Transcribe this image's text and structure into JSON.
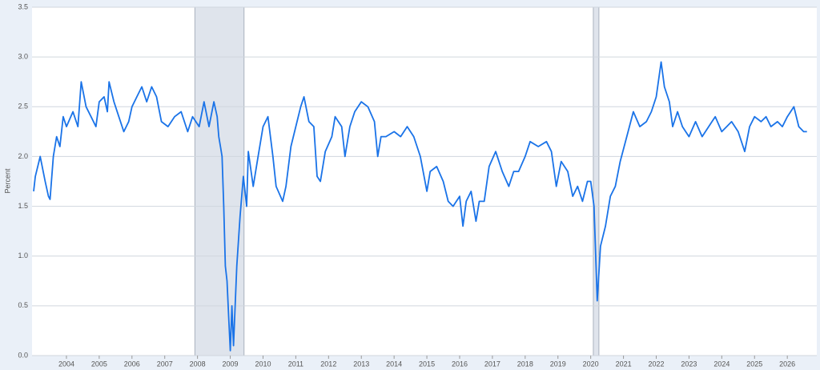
{
  "chart_data": {
    "type": "line",
    "y_label": "Percent",
    "x": [
      2003.0,
      2003.05,
      2003.2,
      2003.35,
      2003.45,
      2003.5,
      2003.6,
      2003.7,
      2003.8,
      2003.9,
      2004.0,
      2004.2,
      2004.35,
      2004.45,
      2004.6,
      2004.75,
      2004.9,
      2005.0,
      2005.15,
      2005.25,
      2005.3,
      2005.45,
      2005.6,
      2005.75,
      2005.9,
      2006.0,
      2006.15,
      2006.3,
      2006.45,
      2006.6,
      2006.75,
      2006.9,
      2007.1,
      2007.3,
      2007.5,
      2007.7,
      2007.85,
      2008.05,
      2008.2,
      2008.35,
      2008.5,
      2008.6,
      2008.65,
      2008.7,
      2008.75,
      2008.8,
      2008.85,
      2008.9,
      2008.95,
      2009.0,
      2009.05,
      2009.1,
      2009.2,
      2009.3,
      2009.4,
      2009.5,
      2009.55,
      2009.7,
      2009.85,
      2010.0,
      2010.15,
      2010.3,
      2010.4,
      2010.6,
      2010.7,
      2010.85,
      2011.0,
      2011.15,
      2011.25,
      2011.4,
      2011.55,
      2011.65,
      2011.75,
      2011.9,
      2012.1,
      2012.2,
      2012.4,
      2012.5,
      2012.65,
      2012.8,
      2013.0,
      2013.2,
      2013.4,
      2013.5,
      2013.6,
      2013.75,
      2014.0,
      2014.2,
      2014.4,
      2014.6,
      2014.8,
      2015.0,
      2015.1,
      2015.3,
      2015.5,
      2015.65,
      2015.8,
      2016.0,
      2016.1,
      2016.2,
      2016.35,
      2016.5,
      2016.6,
      2016.75,
      2016.9,
      2017.1,
      2017.3,
      2017.5,
      2017.65,
      2017.8,
      2018.0,
      2018.15,
      2018.4,
      2018.65,
      2018.8,
      2018.95,
      2019.1,
      2019.3,
      2019.45,
      2019.6,
      2019.75,
      2019.9,
      2020.0,
      2020.1,
      2020.2,
      2020.3,
      2020.45,
      2020.6,
      2020.75,
      2020.9,
      2021.1,
      2021.3,
      2021.5,
      2021.7,
      2021.85,
      2022.0,
      2022.15,
      2022.25,
      2022.4,
      2022.5,
      2022.65,
      2022.8,
      2023.0,
      2023.2,
      2023.4,
      2023.6,
      2023.8,
      2024.0,
      2024.15,
      2024.3,
      2024.5,
      2024.7,
      2024.85,
      2025.0,
      2025.2,
      2025.35,
      2025.5,
      2025.7,
      2025.85,
      2026.0,
      2026.2,
      2026.35,
      2026.5,
      2026.6
    ],
    "series": [
      {
        "color": "#1a73e8",
        "values": [
          1.65,
          1.8,
          2.0,
          1.75,
          1.6,
          1.57,
          2.0,
          2.2,
          2.1,
          2.4,
          2.3,
          2.45,
          2.3,
          2.75,
          2.5,
          2.4,
          2.3,
          2.55,
          2.6,
          2.45,
          2.75,
          2.55,
          2.4,
          2.25,
          2.35,
          2.5,
          2.6,
          2.7,
          2.55,
          2.7,
          2.6,
          2.35,
          2.3,
          2.4,
          2.45,
          2.25,
          2.4,
          2.3,
          2.55,
          2.3,
          2.55,
          2.4,
          2.2,
          2.1,
          2.0,
          1.5,
          0.9,
          0.75,
          0.4,
          0.05,
          0.5,
          0.1,
          0.9,
          1.4,
          1.8,
          1.5,
          2.05,
          1.7,
          2.0,
          2.3,
          2.4,
          2.0,
          1.7,
          1.55,
          1.7,
          2.1,
          2.3,
          2.5,
          2.6,
          2.35,
          2.3,
          1.8,
          1.75,
          2.05,
          2.2,
          2.4,
          2.3,
          2.0,
          2.3,
          2.45,
          2.55,
          2.5,
          2.35,
          2.0,
          2.2,
          2.2,
          2.25,
          2.2,
          2.3,
          2.2,
          2.0,
          1.65,
          1.85,
          1.9,
          1.75,
          1.55,
          1.5,
          1.6,
          1.3,
          1.55,
          1.65,
          1.35,
          1.55,
          1.55,
          1.9,
          2.05,
          1.85,
          1.7,
          1.85,
          1.85,
          2.0,
          2.15,
          2.1,
          2.15,
          2.05,
          1.7,
          1.95,
          1.85,
          1.6,
          1.7,
          1.55,
          1.75,
          1.75,
          1.5,
          0.55,
          1.1,
          1.3,
          1.6,
          1.7,
          1.95,
          2.2,
          2.45,
          2.3,
          2.35,
          2.45,
          2.6,
          2.95,
          2.7,
          2.55,
          2.3,
          2.45,
          2.3,
          2.2,
          2.35,
          2.2,
          2.3,
          2.4,
          2.25,
          2.3,
          2.35,
          2.25,
          2.05,
          2.3,
          2.4,
          2.35,
          2.4,
          2.3,
          2.35,
          2.3,
          2.4,
          2.5,
          2.3,
          2.25,
          2.25
        ]
      }
    ],
    "recessions": [
      [
        2007.92,
        2009.42
      ],
      [
        2020.08,
        2020.25
      ]
    ],
    "xlim": [
      2002.95,
      2026.9
    ],
    "xticks": [
      2004,
      2005,
      2006,
      2007,
      2008,
      2009,
      2010,
      2011,
      2012,
      2013,
      2014,
      2015,
      2016,
      2017,
      2018,
      2019,
      2020,
      2021,
      2022,
      2023,
      2024,
      2025,
      2026
    ],
    "ylim": [
      0,
      3.5
    ],
    "yticks": [
      {
        "value": 0,
        "label": "0.0"
      },
      0.5,
      {
        "value": 1,
        "label": "1.0"
      },
      1.5,
      {
        "value": 2,
        "label": "2.0"
      },
      2.5,
      {
        "value": 3,
        "label": "3.0"
      },
      3.5
    ],
    "grid": true
  }
}
